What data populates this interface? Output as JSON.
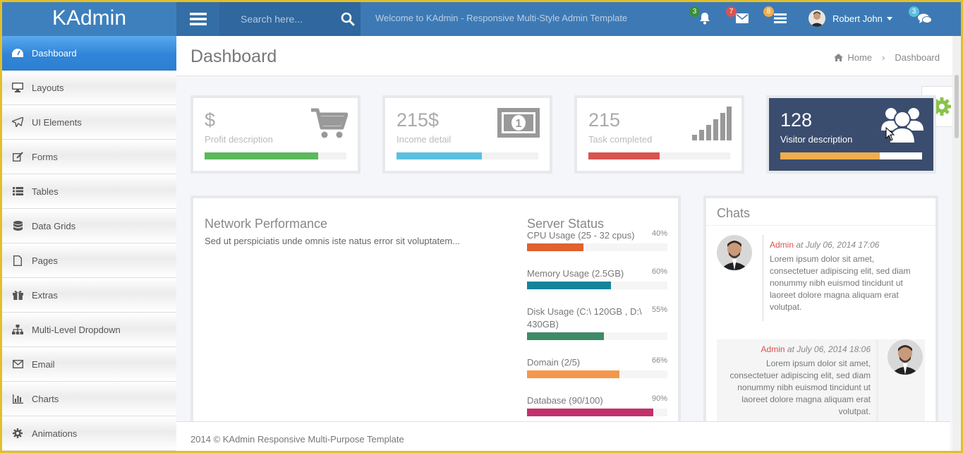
{
  "brand": "KAdmin",
  "sidebar": {
    "items": [
      {
        "label": "Dashboard",
        "icon": "dashboard-icon",
        "active": true
      },
      {
        "label": "Layouts",
        "icon": "desktop-icon"
      },
      {
        "label": "UI Elements",
        "icon": "paper-plane-icon"
      },
      {
        "label": "Forms",
        "icon": "edit-icon"
      },
      {
        "label": "Tables",
        "icon": "list-icon"
      },
      {
        "label": "Data Grids",
        "icon": "database-icon"
      },
      {
        "label": "Pages",
        "icon": "file-icon"
      },
      {
        "label": "Extras",
        "icon": "gift-icon"
      },
      {
        "label": "Multi-Level Dropdown",
        "icon": "sitemap-icon"
      },
      {
        "label": "Email",
        "icon": "envelope-icon"
      },
      {
        "label": "Charts",
        "icon": "bar-chart-icon"
      },
      {
        "label": "Animations",
        "icon": "gear-icon"
      }
    ]
  },
  "topbar": {
    "search_placeholder": "Search here...",
    "welcome": "Welcome to KAdmin - Responsive Multi-Style Admin Template",
    "notifications": {
      "bell": "3",
      "mail": "7",
      "tasks": "8",
      "chat": "3"
    },
    "user_name": "Robert John"
  },
  "page": {
    "title": "Dashboard",
    "breadcrumb": {
      "home": "Home",
      "current": "Dashboard"
    }
  },
  "stats": [
    {
      "value": "$",
      "desc": "Profit description",
      "progress": 0.8,
      "color": "#5cb85c",
      "icon": "shopping-cart-icon"
    },
    {
      "value": "215$",
      "desc": "Income detail",
      "progress": 0.6,
      "color": "#5bc0de",
      "icon": "money-icon"
    },
    {
      "value": "215",
      "desc": "Task completed",
      "progress": 0.5,
      "color": "#d9534f",
      "icon": "signal-icon"
    },
    {
      "value": "128",
      "desc": "Visitor description",
      "progress": 0.7,
      "color": "#f0ad4e",
      "icon": "users-icon"
    }
  ],
  "network": {
    "title": "Network Performance",
    "text": "Sed ut perspiciatis unde omnis iste natus error sit voluptatem..."
  },
  "server": {
    "title": "Server Status",
    "items": [
      {
        "label": "CPU Usage (25 - 32 cpus)",
        "pct": "40%",
        "value": 0.4,
        "color": "#e0622d"
      },
      {
        "label": "Memory Usage (2.5GB)",
        "pct": "60%",
        "value": 0.6,
        "color": "#14849a"
      },
      {
        "label": "Disk Usage (C:\\ 120GB , D:\\ 430GB)",
        "pct": "55%",
        "value": 0.55,
        "color": "#3f8a66"
      },
      {
        "label": "Domain (2/5)",
        "pct": "66%",
        "value": 0.66,
        "color": "#f5974a"
      },
      {
        "label": "Database (90/100)",
        "pct": "90%",
        "value": 0.9,
        "color": "#c3306d"
      }
    ]
  },
  "chats": {
    "title": "Chats",
    "messages": [
      {
        "author": "Admin",
        "time": "at July 06, 2014 17:06",
        "text": "Lorem ipsum dolor sit amet, consectetuer adipiscing elit, sed diam nonummy nibh euismod tincidunt ut laoreet dolore magna aliquam erat volutpat."
      },
      {
        "author": "Admin",
        "time": "at July 06, 2014 18:06",
        "text": "Lorem ipsum dolor sit amet, consectetuer adipiscing elit, sed diam nonummy nibh euismod tincidunt ut laoreet dolore magna aliquam erat volutpat."
      }
    ]
  },
  "footer": "2014 © KAdmin Responsive Multi-Purpose Template"
}
